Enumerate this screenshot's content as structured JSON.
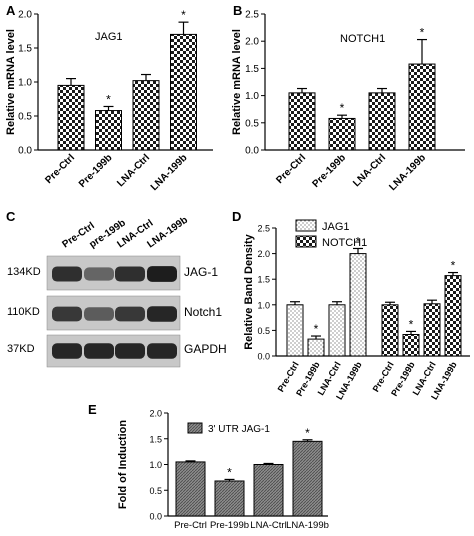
{
  "panels": {
    "a": {
      "letter": "A"
    },
    "b": {
      "letter": "B"
    },
    "c": {
      "letter": "C",
      "lanes": [
        "Pre-Ctrl",
        "pre-199b",
        "LNA-Ctrl",
        "LNA-199b"
      ],
      "rows": [
        {
          "size": "134KD",
          "protein": "JAG-1",
          "intensity": [
            0.85,
            0.55,
            0.85,
            0.95
          ]
        },
        {
          "size": "110KD",
          "protein": "Notch1",
          "intensity": [
            0.8,
            0.6,
            0.8,
            0.9
          ]
        },
        {
          "size": "37KD",
          "protein": "GAPDH",
          "intensity": [
            0.9,
            0.9,
            0.9,
            0.9
          ]
        }
      ]
    },
    "d": {
      "letter": "D"
    },
    "e": {
      "letter": "E"
    }
  },
  "chart_data": [
    {
      "id": "a",
      "type": "bar",
      "title": "JAG1",
      "ylabel": "Relative mRNA level",
      "xlabel": "",
      "categories": [
        "Pre-Ctrl",
        "Pre-199b",
        "LNA-Ctrl",
        "LNA-199b"
      ],
      "values": [
        0.95,
        0.58,
        1.02,
        1.7
      ],
      "errors": [
        0.1,
        0.06,
        0.09,
        0.18
      ],
      "significant": [
        false,
        true,
        false,
        true
      ],
      "ylim": [
        0,
        2.0
      ],
      "yticks": [
        "0.0",
        "0.5",
        "1.0",
        "1.5",
        "2.0"
      ],
      "sig_label": "*",
      "pattern": "checker",
      "grid": false
    },
    {
      "id": "b",
      "type": "bar",
      "title": "NOTCH1",
      "ylabel": "Relative mRNA level",
      "xlabel": "",
      "categories": [
        "Pre-Ctrl",
        "Pre-199b",
        "LNA-Ctrl",
        "LNA-199b"
      ],
      "values": [
        1.05,
        0.58,
        1.05,
        1.58
      ],
      "errors": [
        0.08,
        0.06,
        0.08,
        0.45
      ],
      "significant": [
        false,
        true,
        false,
        true
      ],
      "ylim": [
        0,
        2.5
      ],
      "yticks": [
        "0.0",
        "0.5",
        "1.0",
        "1.5",
        "2.0",
        "2.5"
      ],
      "sig_label": "*",
      "pattern": "checker",
      "grid": false
    },
    {
      "id": "d",
      "type": "bar",
      "title": "",
      "ylabel": "Relative Band Density",
      "xlabel": "",
      "groups": [
        {
          "name": "JAG1",
          "pattern": "dots",
          "categories": [
            "Pre-Ctrl",
            "Pre-199b",
            "LNA-Ctrl",
            "LNA-199b"
          ],
          "values": [
            1.0,
            0.33,
            1.0,
            2.0
          ],
          "errors": [
            0.06,
            0.06,
            0.06,
            0.1
          ],
          "significant": [
            false,
            true,
            false,
            true
          ]
        },
        {
          "name": "NOTCH1",
          "pattern": "checker",
          "categories": [
            "Pre-Ctrl",
            "Pre-199b",
            "LNA-Ctrl",
            "LNA-199b"
          ],
          "values": [
            1.0,
            0.42,
            1.02,
            1.57
          ],
          "errors": [
            0.05,
            0.06,
            0.07,
            0.06
          ],
          "significant": [
            false,
            true,
            false,
            true
          ]
        }
      ],
      "ylim": [
        0,
        2.5
      ],
      "yticks": [
        "0.0",
        "0.5",
        "1.0",
        "1.5",
        "2.0",
        "2.5"
      ],
      "sig_label": "*",
      "legend": "top-left",
      "grid": false
    },
    {
      "id": "e",
      "type": "bar",
      "title": "",
      "ylabel": "Fold of Induction",
      "xlabel": "",
      "legend_label": "3' UTR JAG-1",
      "categories": [
        "Pre-Ctrl",
        "Pre-199b",
        "LNA-Ctrl",
        "LNA-199b"
      ],
      "values": [
        1.05,
        0.68,
        1.0,
        1.45
      ],
      "errors": [
        0.02,
        0.03,
        0.02,
        0.03
      ],
      "significant": [
        false,
        true,
        false,
        true
      ],
      "ylim": [
        0,
        2.0
      ],
      "yticks": [
        "0.0",
        "0.5",
        "1.0",
        "1.5",
        "2.0"
      ],
      "sig_label": "*",
      "pattern": "hatch",
      "legend": "top-left",
      "grid": false
    }
  ]
}
